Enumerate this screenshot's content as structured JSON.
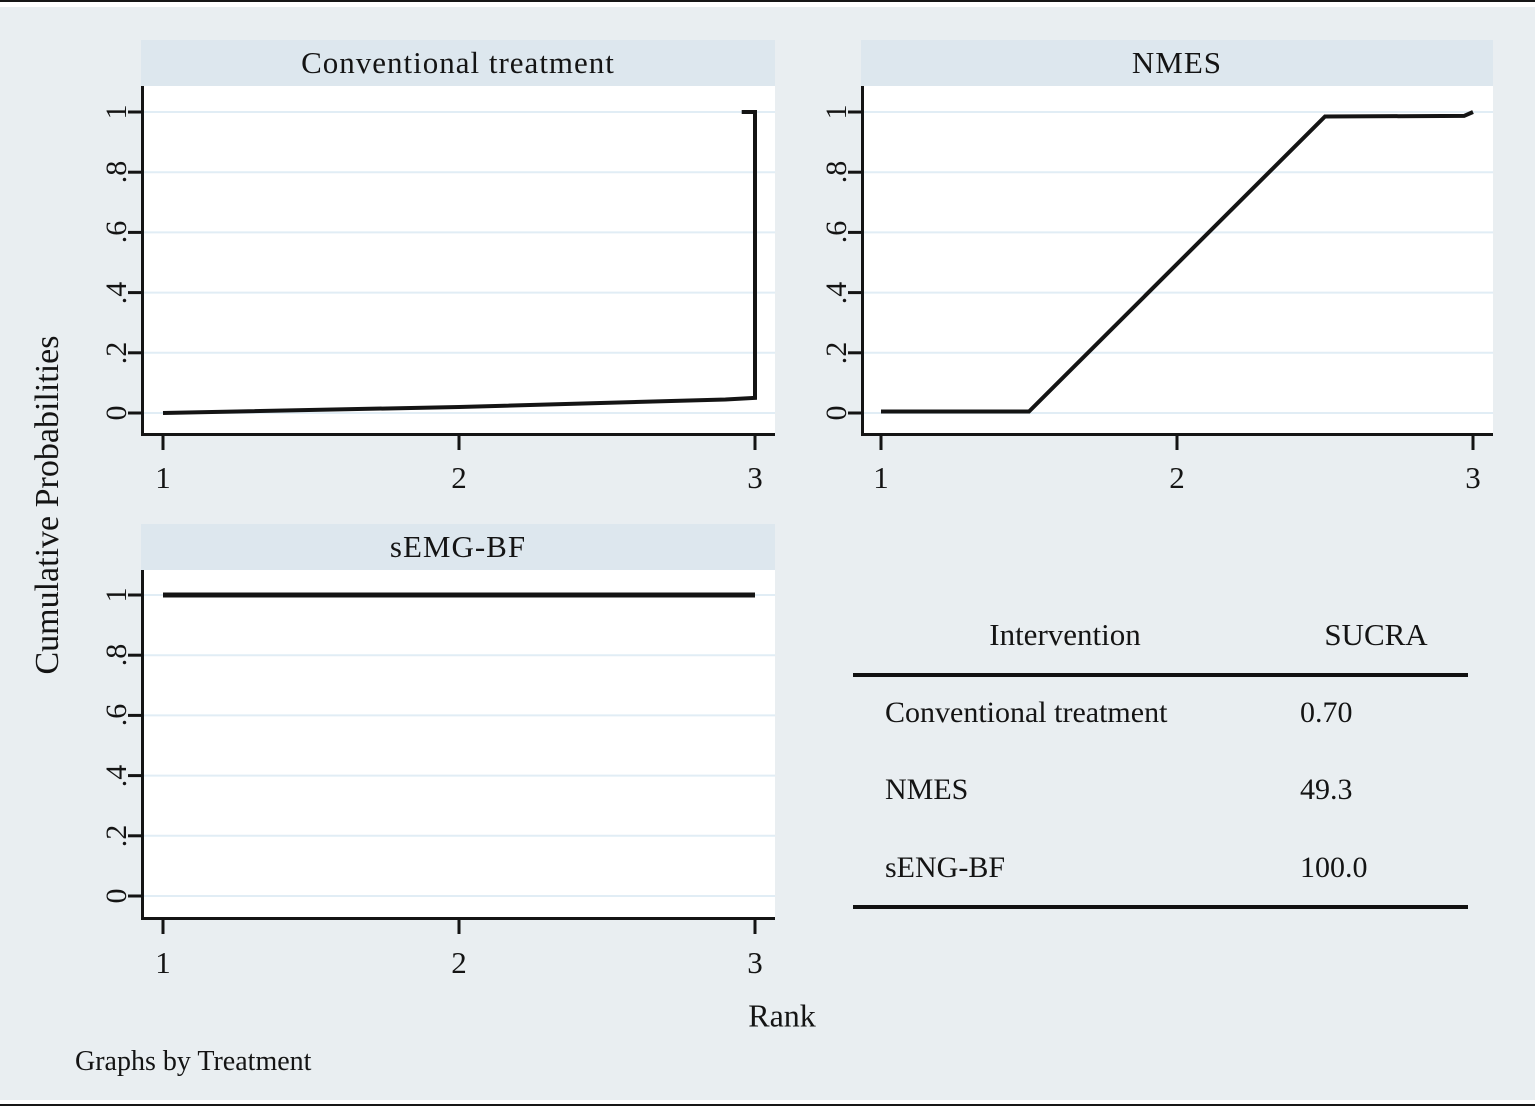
{
  "figure": {
    "ylabel": "Cumulative Probabilities",
    "xlabel": "Rank",
    "note": "Graphs by Treatment"
  },
  "colors": {
    "background": "#e9eef1",
    "band": "#dde7ee",
    "plot_background": "#ffffff",
    "grid": "#e1edf5",
    "ink": "#141414"
  },
  "chart_data": [
    {
      "type": "line",
      "title": "Conventional treatment",
      "series_name": "Conventional treatment",
      "xlim": [
        1,
        3
      ],
      "ylim": [
        0,
        1
      ],
      "xticks": [
        "1",
        "2",
        "3"
      ],
      "ytick_values": [
        0,
        0.2,
        0.4,
        0.6,
        0.8,
        1
      ],
      "ytick_labels": [
        "0",
        ".2",
        ".4",
        ".6",
        ".8",
        "1"
      ],
      "grid": true,
      "points": [
        [
          1,
          0.0
        ],
        [
          2,
          0.02
        ],
        [
          2.9,
          0.045
        ],
        [
          3,
          0.05
        ],
        [
          3,
          1.0
        ],
        [
          2.955,
          1.0
        ]
      ]
    },
    {
      "type": "line",
      "title": "NMES",
      "series_name": "NMES",
      "xlim": [
        1,
        3
      ],
      "ylim": [
        0,
        1
      ],
      "xticks": [
        "1",
        "2",
        "3"
      ],
      "ytick_values": [
        0,
        0.2,
        0.4,
        0.6,
        0.8,
        1
      ],
      "ytick_labels": [
        "0",
        ".2",
        ".4",
        ".6",
        ".8",
        "1"
      ],
      "grid": true,
      "points": [
        [
          1,
          0.005
        ],
        [
          1.5,
          0.005
        ],
        [
          2.5,
          0.985
        ],
        [
          2.97,
          0.987
        ],
        [
          3,
          1.0
        ]
      ]
    },
    {
      "type": "line",
      "title": "sEMG-BF",
      "series_name": "sEMG-BF",
      "xlim": [
        1,
        3
      ],
      "ylim": [
        0,
        1
      ],
      "xticks": [
        "1",
        "2",
        "3"
      ],
      "ytick_values": [
        0,
        0.2,
        0.4,
        0.6,
        0.8,
        1
      ],
      "ytick_labels": [
        "0",
        ".2",
        ".4",
        ".6",
        ".8",
        "1"
      ],
      "grid": true,
      "points": [
        [
          1,
          1.0
        ],
        [
          3,
          1.0
        ]
      ]
    },
    {
      "type": "table",
      "headers": [
        "Intervention",
        "SUCRA"
      ],
      "rows": [
        [
          "Conventional treatment",
          "0.70"
        ],
        [
          "NMES",
          "49.3"
        ],
        [
          "sENG-BF",
          "100.0"
        ]
      ]
    }
  ]
}
